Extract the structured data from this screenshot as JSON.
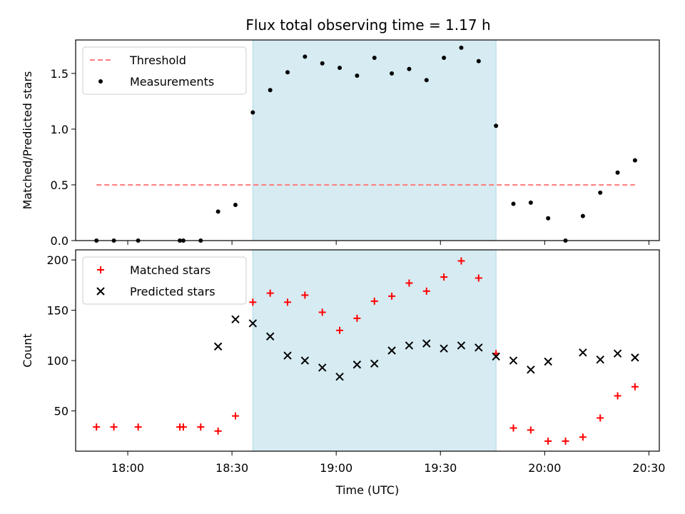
{
  "chart_data": {
    "type": "scatter",
    "title": "Flux total observing time = 1.17 h",
    "x_unit": "Time (UTC)",
    "x_range": [
      "17:45",
      "20:33"
    ],
    "x_ticks": [
      "18:00",
      "18:30",
      "19:00",
      "19:30",
      "20:00",
      "20:30"
    ],
    "highlight_span": {
      "start": "18:36",
      "end": "19:46",
      "color": "#add8e6"
    },
    "times": [
      "17:51",
      "17:56",
      "18:03",
      "18:15",
      "18:16",
      "18:21",
      "18:26",
      "18:31",
      "18:36",
      "18:41",
      "18:46",
      "18:51",
      "18:56",
      "19:01",
      "19:06",
      "19:11",
      "19:16",
      "19:21",
      "19:26",
      "19:31",
      "19:36",
      "19:41",
      "19:46",
      "19:51",
      "19:56",
      "20:01",
      "20:06",
      "20:11",
      "20:16",
      "20:21",
      "20:26"
    ],
    "panels": [
      {
        "name": "ratio",
        "ylabel": "Matched/Predicted stars",
        "ylim": [
          0,
          1.8
        ],
        "yticks": [
          "0.0",
          "0.5",
          "1.0",
          "1.5"
        ],
        "legend": {
          "position": "upper-left",
          "entries": [
            "Threshold",
            "Measurements"
          ]
        },
        "threshold": {
          "label": "Threshold",
          "value": 0.5,
          "start": "17:51",
          "end": "20:26",
          "color": "#ff7f7f"
        },
        "series": [
          {
            "name": "Measurements",
            "marker": "dot",
            "color": "#000000",
            "values": [
              0.0,
              0.0,
              0.0,
              0.0,
              0.0,
              0.0,
              0.26,
              0.32,
              1.15,
              1.35,
              1.51,
              1.65,
              1.59,
              1.55,
              1.48,
              1.64,
              1.5,
              1.54,
              1.44,
              1.64,
              1.73,
              1.61,
              1.03,
              0.33,
              0.34,
              0.2,
              0.0,
              0.22,
              0.43,
              0.61,
              0.72
            ]
          }
        ]
      },
      {
        "name": "count",
        "ylabel": "Count",
        "ylim": [
          10,
          210
        ],
        "yticks": [
          "50",
          "100",
          "150",
          "200"
        ],
        "xlabel": "Time (UTC)",
        "legend": {
          "position": "upper-left",
          "entries": [
            "Matched stars",
            "Predicted stars"
          ]
        },
        "series": [
          {
            "name": "Matched stars",
            "marker": "plus",
            "color": "#ff0000",
            "values": [
              34,
              34,
              34,
              34,
              34,
              34,
              30,
              45,
              158,
              167,
              158,
              165,
              148,
              130,
              142,
              159,
              164,
              177,
              169,
              183,
              199,
              182,
              107,
              33,
              31,
              20,
              20,
              24,
              43,
              65,
              74
            ]
          },
          {
            "name": "Predicted stars",
            "marker": "x",
            "color": "#000000",
            "values": [
              null,
              null,
              null,
              null,
              null,
              null,
              114,
              141,
              137,
              124,
              105,
              100,
              93,
              84,
              96,
              97,
              110,
              115,
              117,
              112,
              115,
              113,
              104,
              100,
              91,
              99,
              null,
              108,
              101,
              107,
              103
            ]
          }
        ]
      }
    ]
  }
}
